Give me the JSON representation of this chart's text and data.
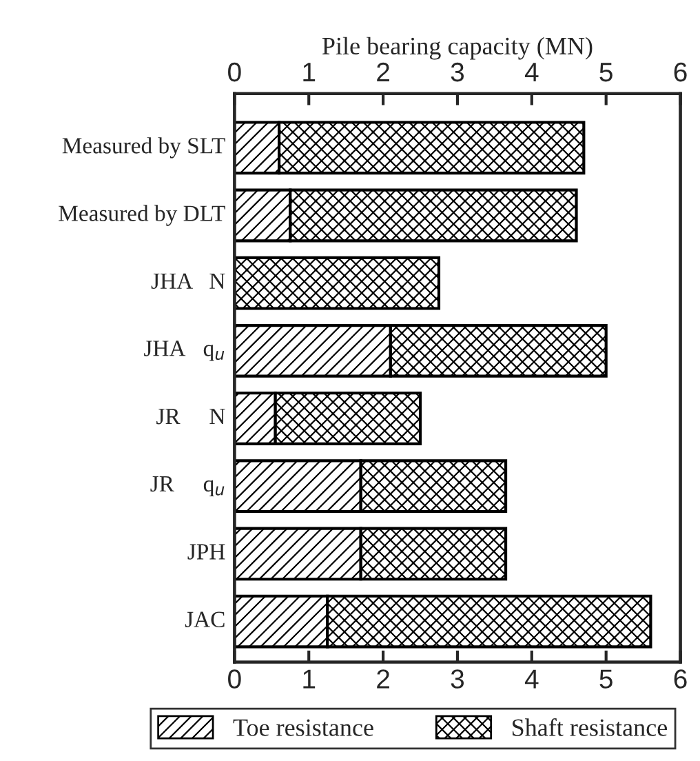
{
  "chart_data": {
    "type": "bar",
    "orientation": "horizontal",
    "stacked": true,
    "x2label": "Pile bearing capacity (MN)",
    "categories": [
      "Measured by SLT",
      "Measured by DLT",
      "JHA   N",
      "JHA   q$_{u}$",
      "JR     N",
      "JR     q$_{u}$",
      "JPH",
      "JAC"
    ],
    "series": [
      {
        "name": "Toe resistance",
        "color": "#000000",
        "values": [
          0.6,
          0.75,
          0,
          2.1,
          0.55,
          1.7,
          1.7,
          1.25
        ]
      },
      {
        "name": "Shaft resistance",
        "color": "#000000",
        "values": [
          4.1,
          3.85,
          2.75,
          2.9,
          1.95,
          1.95,
          1.95,
          4.35
        ]
      }
    ],
    "xlim": [
      0,
      6
    ],
    "xticks": [
      0,
      1,
      2,
      3,
      4,
      5,
      6
    ],
    "x2lim": [
      0,
      6
    ],
    "x2ticks": [
      0,
      1,
      2,
      3,
      4,
      5,
      6
    ],
    "grid": false,
    "legend": "bottom"
  }
}
